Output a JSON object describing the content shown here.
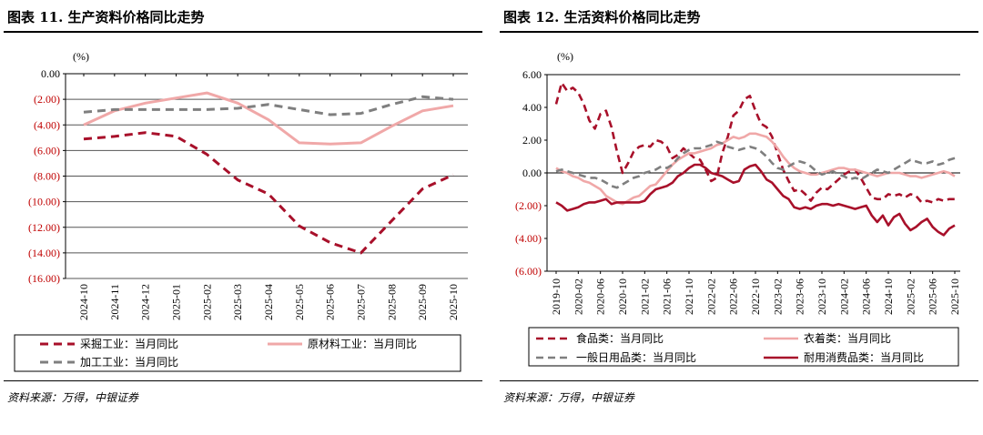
{
  "left": {
    "figure_title": "图表 11. 生产资料价格同比走势",
    "source": "资料来源：万得，中银证券"
  },
  "right": {
    "figure_title": "图表 12. 生活资料价格同比走势",
    "source": "资料来源：万得，中银证券"
  },
  "colors": {
    "dark_red": "#a8102a",
    "pink": "#f0a8a8",
    "gray": "#7f7f7f",
    "tick_red": "#c00000"
  },
  "chart_data": [
    {
      "type": "line",
      "ylabel": "(%)",
      "ylim": [
        -16,
        0
      ],
      "yticks": [
        0,
        -2,
        -4,
        -6,
        -8,
        -10,
        -12,
        -14,
        -16
      ],
      "ytick_labels": [
        "0.00",
        "(2.00)",
        "(4.00)",
        "(6.00)",
        "(8.00)",
        "(10.00)",
        "(12.00)",
        "(14.00)",
        "(16.00)"
      ],
      "x": [
        "2024-10",
        "2024-11",
        "2024-12",
        "2025-01",
        "2025-02",
        "2025-03",
        "2025-04",
        "2025-05",
        "2025-06",
        "2025-07",
        "2025-08",
        "2025-09",
        "2025-10"
      ],
      "grid": "horizontal",
      "legend_position": "bottom",
      "series": [
        {
          "name": "采掘工业：当月同比",
          "style": "dashed",
          "color": "#a8102a",
          "values": [
            -5.1,
            -4.9,
            -4.6,
            -4.9,
            -6.3,
            -8.3,
            -9.4,
            -11.9,
            -13.2,
            -14.0,
            -11.5,
            -9.0,
            -7.9
          ]
        },
        {
          "name": "原材料工业：当月同比",
          "style": "solid",
          "color": "#f0a8a8",
          "values": [
            -4.0,
            -2.9,
            -2.3,
            -1.9,
            -1.5,
            -2.3,
            -3.6,
            -5.4,
            -5.5,
            -5.4,
            -4.1,
            -2.9,
            -2.5
          ]
        },
        {
          "name": "加工工业：当月同比",
          "style": "dashed",
          "color": "#7f7f7f",
          "values": [
            -3.0,
            -2.8,
            -2.8,
            -2.8,
            -2.8,
            -2.7,
            -2.4,
            -2.8,
            -3.2,
            -3.1,
            -2.4,
            -1.8,
            -2.0
          ]
        }
      ]
    },
    {
      "type": "line",
      "ylabel": "(%)",
      "ylim": [
        -6,
        6
      ],
      "yticks": [
        6,
        4,
        2,
        0,
        -2,
        -4,
        -6
      ],
      "ytick_labels": [
        "6.00",
        "4.00",
        "2.00",
        "0.00",
        "(2.00)",
        "(4.00)",
        "(6.00)"
      ],
      "xtick_labels": [
        "2019-10",
        "2020-02",
        "2020-06",
        "2020-10",
        "2021-02",
        "2021-06",
        "2021-10",
        "2022-02",
        "2022-06",
        "2022-10",
        "2023-02",
        "2023-06",
        "2023-10",
        "2024-02",
        "2024-06",
        "2024-10",
        "2025-02",
        "2025-06",
        "2025-10"
      ],
      "x_start": "2019-10",
      "x_end": "2025-10",
      "grid": "none",
      "legend_position": "bottom",
      "series": [
        {
          "name": "食品类：当月同比",
          "style": "dashed",
          "color": "#a8102a",
          "values": [
            4.2,
            5.5,
            5.0,
            5.2,
            4.9,
            4.2,
            3.2,
            2.7,
            3.6,
            3.8,
            2.8,
            1.3,
            0.0,
            0.6,
            1.3,
            1.6,
            1.7,
            1.6,
            2.0,
            1.9,
            1.6,
            0.9,
            1.1,
            1.5,
            1.2,
            0.9,
            0.8,
            0.2,
            -0.5,
            -0.3,
            1.2,
            2.2,
            3.5,
            3.8,
            4.5,
            4.7,
            3.8,
            3.0,
            2.8,
            2.2,
            1.2,
            0.2,
            -0.5,
            -1.1,
            -1.0,
            -1.3,
            -1.7,
            -1.2,
            -0.9,
            -1.0,
            -0.7,
            -0.4,
            -0.1,
            0.1,
            0.2,
            -0.3,
            -0.9,
            -1.5,
            -1.6,
            -1.6,
            -1.3,
            -1.4,
            -1.3,
            -1.5,
            -1.3,
            -1.4,
            -1.8,
            -1.7,
            -1.8,
            -1.6,
            -1.7,
            -1.6,
            -1.6
          ]
        },
        {
          "name": "衣着类：当月同比",
          "style": "solid",
          "color": "#f0a8a8",
          "values": [
            0.3,
            0.1,
            0.0,
            -0.2,
            -0.3,
            -0.5,
            -0.6,
            -0.8,
            -1.0,
            -1.4,
            -1.6,
            -1.8,
            -1.9,
            -1.7,
            -1.5,
            -1.4,
            -1.1,
            -0.8,
            -0.7,
            -0.3,
            0.1,
            0.5,
            0.8,
            1.0,
            1.2,
            1.2,
            1.3,
            1.4,
            1.5,
            1.7,
            1.8,
            2.0,
            2.2,
            2.1,
            2.2,
            2.4,
            2.4,
            2.3,
            2.2,
            1.9,
            1.5,
            1.0,
            0.6,
            0.3,
            0.1,
            0.0,
            -0.1,
            -0.1,
            0.0,
            0.1,
            0.2,
            0.3,
            0.3,
            0.2,
            0.2,
            0.1,
            0.0,
            -0.1,
            -0.2,
            -0.1,
            0.0,
            0.0,
            0.0,
            -0.1,
            -0.2,
            -0.2,
            -0.3,
            -0.2,
            -0.1,
            0.0,
            0.1,
            0.0,
            -0.2
          ]
        },
        {
          "name": "一般日用品类：当月同比",
          "style": "dashed",
          "color": "#7f7f7f",
          "values": [
            0.1,
            0.2,
            0.1,
            0.0,
            -0.1,
            -0.2,
            -0.3,
            -0.3,
            -0.4,
            -0.6,
            -0.8,
            -0.9,
            -0.7,
            -0.5,
            -0.3,
            -0.2,
            0.0,
            0.1,
            0.2,
            0.4,
            0.3,
            0.5,
            0.9,
            1.2,
            1.4,
            1.5,
            1.5,
            1.6,
            1.7,
            1.9,
            1.8,
            1.6,
            1.5,
            1.4,
            1.5,
            1.6,
            1.5,
            1.3,
            1.0,
            0.6,
            0.3,
            0.2,
            0.4,
            0.6,
            0.7,
            0.6,
            0.4,
            0.1,
            -0.1,
            0.0,
            0.1,
            -0.1,
            -0.2,
            -0.4,
            -0.3,
            -0.4,
            -0.2,
            0.0,
            0.2,
            0.1,
            0.0,
            0.2,
            0.4,
            0.6,
            0.8,
            0.7,
            0.6,
            0.6,
            0.7,
            0.5,
            0.6,
            0.8,
            0.9
          ]
        },
        {
          "name": "耐用消费品类：当月同比",
          "style": "solid",
          "color": "#a8102a",
          "values": [
            -1.8,
            -2.0,
            -2.3,
            -2.2,
            -2.1,
            -1.9,
            -1.8,
            -1.8,
            -1.7,
            -1.6,
            -1.9,
            -1.8,
            -1.8,
            -1.8,
            -1.8,
            -1.8,
            -1.7,
            -1.3,
            -1.0,
            -0.9,
            -0.8,
            -0.6,
            -0.2,
            0.0,
            0.3,
            0.5,
            0.5,
            0.3,
            0.0,
            -0.1,
            -0.2,
            -0.4,
            -0.6,
            -0.5,
            0.2,
            0.4,
            0.5,
            0.1,
            -0.4,
            -0.6,
            -1.0,
            -1.4,
            -1.6,
            -2.1,
            -2.2,
            -2.1,
            -2.2,
            -2.0,
            -1.9,
            -1.9,
            -2.0,
            -1.9,
            -2.0,
            -2.1,
            -2.2,
            -2.1,
            -2.0,
            -2.6,
            -3.0,
            -2.6,
            -3.2,
            -2.7,
            -2.5,
            -3.1,
            -3.5,
            -3.3,
            -3.0,
            -2.8,
            -3.3,
            -3.6,
            -3.8,
            -3.4,
            -3.2
          ]
        }
      ]
    }
  ]
}
